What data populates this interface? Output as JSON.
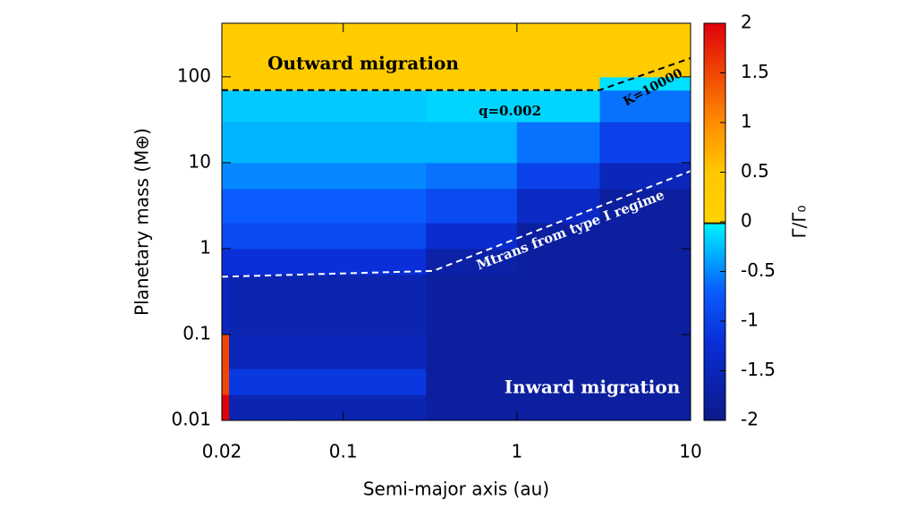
{
  "chart_data": {
    "type": "heatmap",
    "xlabel": "Semi-major axis (au)",
    "ylabel": "Planetary mass (M⊕)",
    "log_x": true,
    "log_y": true,
    "xlim": [
      0.02,
      10
    ],
    "ylim": [
      0.01,
      420
    ],
    "xticks": [
      0.02,
      0.1,
      1,
      10
    ],
    "yticks": [
      0.01,
      0.1,
      1,
      10,
      100
    ],
    "x_edges": [
      0.02,
      0.022,
      0.05,
      0.1,
      0.3,
      1,
      3,
      10
    ],
    "y_edges": [
      0.01,
      0.02,
      0.04,
      0.1,
      0.5,
      1,
      2,
      5,
      10,
      30,
      70,
      100,
      420
    ],
    "z": [
      [
        2,
        -1.6,
        -1.6,
        -1.6,
        -1.8,
        -1.8,
        -1.8
      ],
      [
        1.5,
        -1.1,
        -1.1,
        -1.1,
        -1.8,
        -1.8,
        -1.8
      ],
      [
        1.5,
        -1.5,
        -1.5,
        -1.5,
        -1.8,
        -1.8,
        -1.8
      ],
      [
        -1.5,
        -1.6,
        -1.6,
        -1.6,
        -1.8,
        -1.8,
        -1.8
      ],
      [
        -1.2,
        -1.2,
        -1.2,
        -1.2,
        -1.7,
        -1.8,
        -1.8
      ],
      [
        -0.9,
        -0.9,
        -0.9,
        -0.9,
        -1.3,
        -1.8,
        -1.8
      ],
      [
        -0.7,
        -0.7,
        -0.7,
        -0.7,
        -0.9,
        -1.4,
        -1.8
      ],
      [
        -0.5,
        -0.5,
        -0.5,
        -0.5,
        -0.6,
        -1,
        -1.5
      ],
      [
        -0.3,
        -0.3,
        -0.3,
        -0.3,
        -0.3,
        -0.6,
        -1
      ],
      [
        -0.2,
        -0.2,
        -0.2,
        -0.2,
        -0.15,
        -0.15,
        -0.6
      ],
      [
        0.3,
        0.3,
        0.3,
        0.3,
        0.3,
        0.3,
        -0.1
      ],
      [
        0.3,
        0.3,
        0.3,
        0.3,
        0.3,
        0.3,
        0.3
      ]
    ],
    "colorscale": [
      [
        -2,
        "#0c1a8a"
      ],
      [
        -1.2,
        "#0a2fd8"
      ],
      [
        -0.7,
        "#0a5cff"
      ],
      [
        -0.3,
        "#00b4ff"
      ],
      [
        -0.03,
        "#00f0ff"
      ],
      [
        -0.015,
        "#000000"
      ],
      [
        0,
        "#ffd200"
      ],
      [
        0.5,
        "#ffc800"
      ],
      [
        1,
        "#ff8c00"
      ],
      [
        2,
        "#e0000a"
      ]
    ],
    "colorbar": {
      "label": "Γ/Γ₀",
      "lim": [
        -2,
        2
      ],
      "ticks": [
        -2,
        -1.5,
        -1,
        -0.5,
        0,
        0.5,
        1,
        1.5,
        2
      ]
    },
    "contours": [
      {
        "color": "#000000",
        "x": [
          0.02,
          3,
          10
        ],
        "y": [
          70,
          70,
          165
        ]
      },
      {
        "color": "#ffffff",
        "x": [
          0.02,
          0.33,
          10
        ],
        "y": [
          0.47,
          0.55,
          8
        ]
      }
    ],
    "annotations": [
      "Outward migration",
      "q=0.002",
      "K=10000",
      "Mtrans from type I regime",
      "Inward migration"
    ]
  }
}
